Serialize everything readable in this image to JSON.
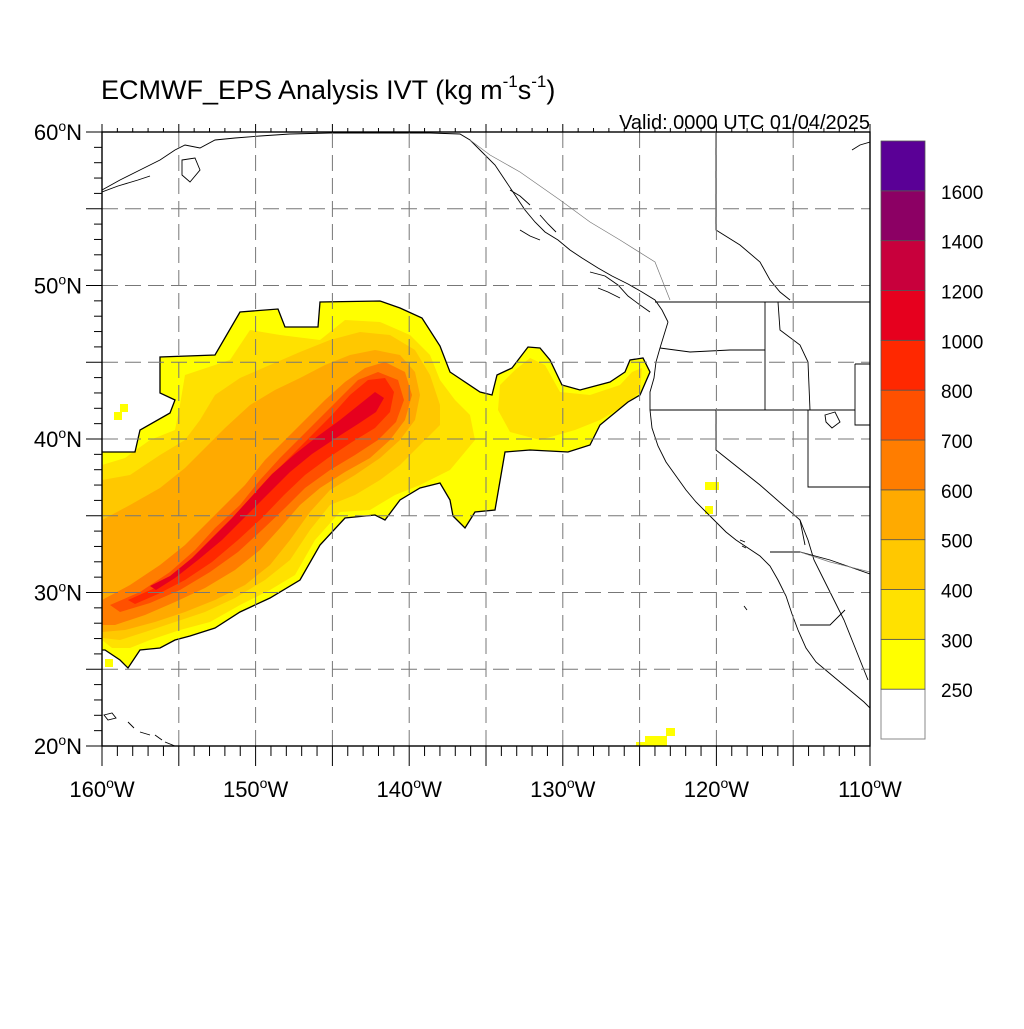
{
  "title": {
    "main": "ECMWF_EPS Analysis IVT (kg m",
    "exp1": "-1",
    "mid": "s",
    "exp2": "-1",
    "end": ")"
  },
  "valid_label": "Valid: 0000 UTC 01/04/2025",
  "map": {
    "lon_range": [
      -160,
      -110
    ],
    "lat_range": [
      20,
      60
    ],
    "lon_ticks": [
      {
        "lon": -160,
        "label": "160°W"
      },
      {
        "lon": -150,
        "label": "150°W"
      },
      {
        "lon": -140,
        "label": "140°W"
      },
      {
        "lon": -130,
        "label": "130°W"
      },
      {
        "lon": -120,
        "label": "120°W"
      },
      {
        "lon": -110,
        "label": "110°W"
      }
    ],
    "lat_ticks": [
      {
        "lat": 60,
        "label": "60°N"
      },
      {
        "lat": 50,
        "label": "50°N"
      },
      {
        "lat": 40,
        "label": "40°N"
      },
      {
        "lat": 30,
        "label": "30°N"
      },
      {
        "lat": 20,
        "label": "20°N"
      }
    ],
    "grid": "dashed every 5°"
  },
  "colorbar": {
    "levels": [
      {
        "label": "250",
        "color": "#ffff00"
      },
      {
        "label": "300",
        "color": "#ffe100"
      },
      {
        "label": "400",
        "color": "#ffc800"
      },
      {
        "label": "500",
        "color": "#ffaa00"
      },
      {
        "label": "600",
        "color": "#ff7d00"
      },
      {
        "label": "700",
        "color": "#ff5000"
      },
      {
        "label": "800",
        "color": "#ff2800"
      },
      {
        "label": "1000",
        "color": "#e6001e"
      },
      {
        "label": "1200",
        "color": "#c8003c"
      },
      {
        "label": "1400",
        "color": "#8c0064"
      },
      {
        "label": "1600",
        "color": "#5a0096"
      }
    ],
    "below_min_color": "#ffffff"
  },
  "ivt_field": {
    "description": "IVT >= 250 kg m-1 s-1 filled regions",
    "plume_axis": [
      [
        -159.5,
        28.5
      ],
      [
        -155,
        31
      ],
      [
        -150,
        35
      ],
      [
        -146,
        39
      ],
      [
        -143,
        42.5
      ]
    ]
  }
}
